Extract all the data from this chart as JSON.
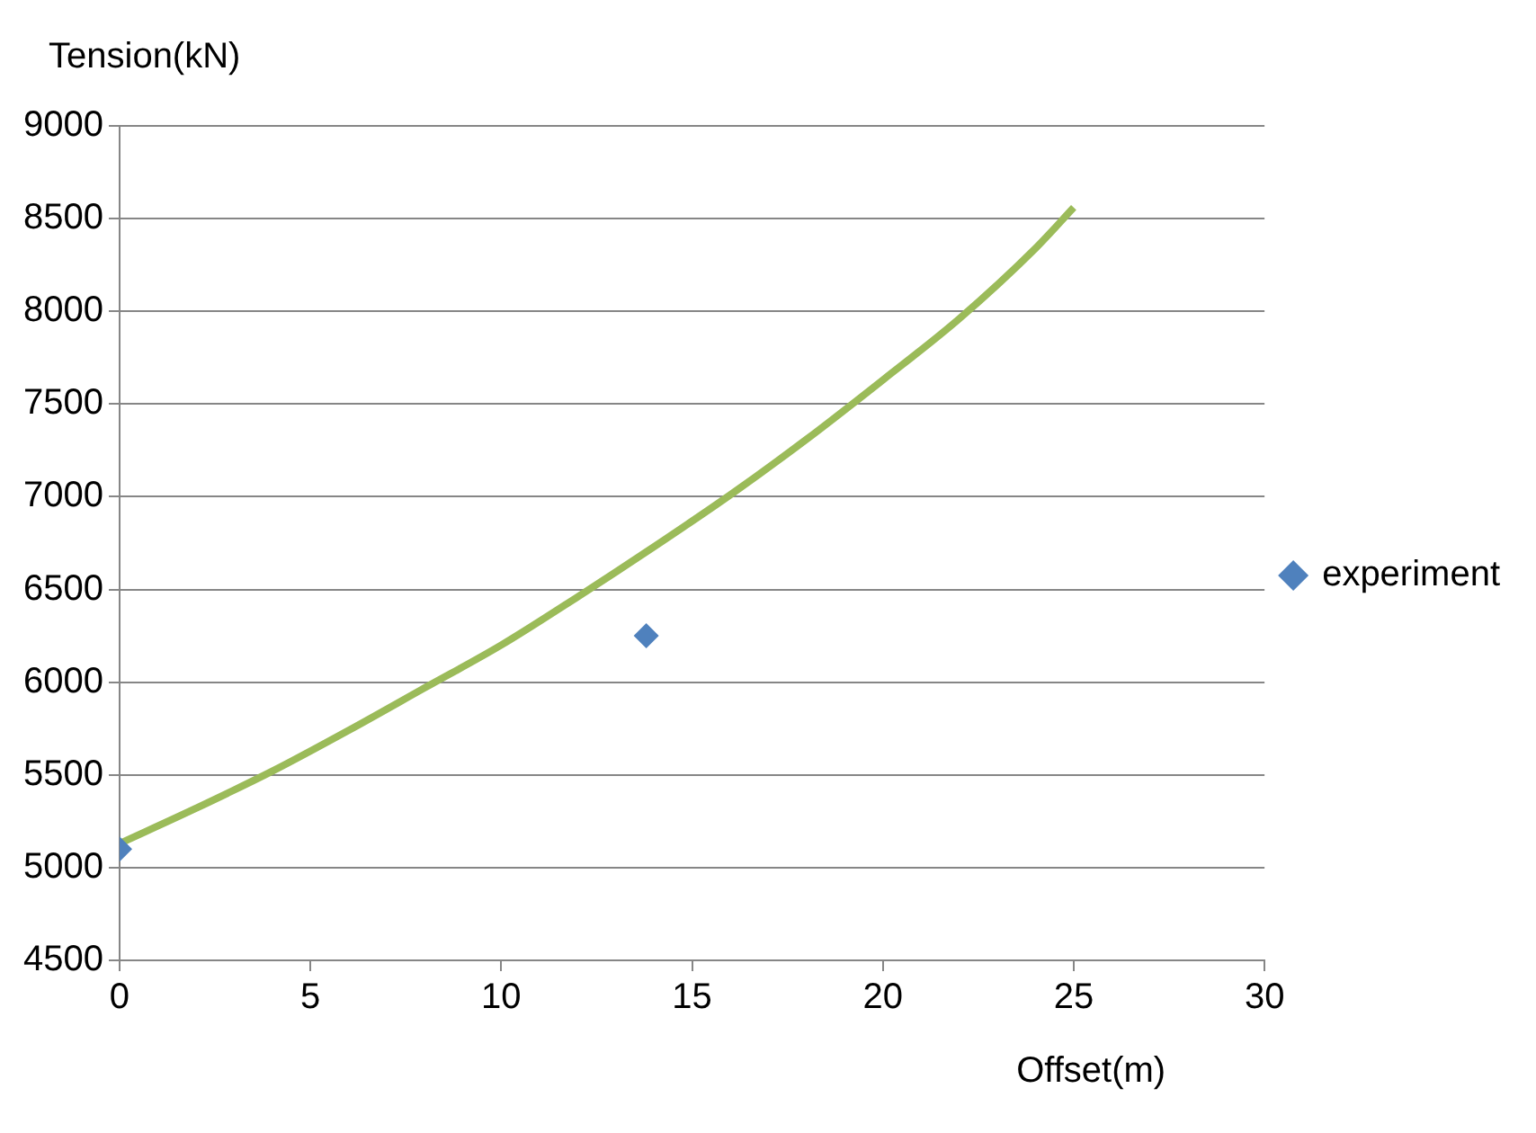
{
  "chart_data": {
    "type": "scatter",
    "xlabel": "Offset(m)",
    "ylabel": "Tension(kN)",
    "xlim": [
      0,
      30
    ],
    "xticks": [
      0,
      5,
      10,
      15,
      20,
      25,
      30
    ],
    "ylim": [
      4500,
      9000
    ],
    "yticks": [
      4500,
      5000,
      5500,
      6000,
      6500,
      7000,
      7500,
      8000,
      8500,
      9000
    ],
    "grid": "y",
    "legend": "right",
    "series": [
      {
        "name": "experiment",
        "marker": "diamond",
        "color": "#4f81bd",
        "x": [
          0,
          13.8
        ],
        "values": [
          5100,
          6250
        ]
      },
      {
        "type": "line",
        "marker": "none",
        "color": "#9bbb59",
        "x": [
          0,
          2,
          4,
          6,
          8,
          10,
          12,
          14,
          16,
          18,
          20,
          22,
          24,
          25
        ],
        "values": [
          5130,
          5320,
          5520,
          5740,
          5970,
          6200,
          6460,
          6730,
          7010,
          7310,
          7630,
          7960,
          8340,
          8560
        ]
      }
    ]
  }
}
